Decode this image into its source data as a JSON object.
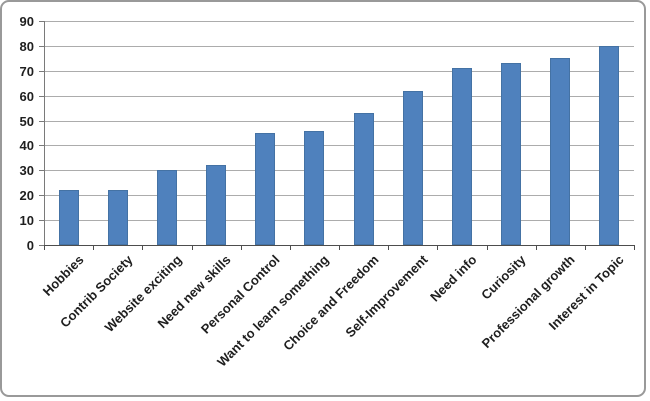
{
  "chart_data": {
    "type": "bar",
    "title": "",
    "xlabel": "",
    "ylabel": "",
    "categories": [
      "Hobbies",
      "Contrib Society",
      "Website exciting",
      "Need new skills",
      "Personal Control",
      "Want to learn something",
      "Choice and Freedom",
      "Self-Improvement",
      "Need info",
      "Curiosity",
      "Professional growth",
      "Interest in Topic"
    ],
    "values": [
      22,
      22,
      30,
      32,
      45,
      46,
      53,
      62,
      71,
      73,
      75,
      80
    ],
    "ylim": [
      0,
      90
    ],
    "ytick_step": 10,
    "ytick_labels": [
      "0",
      "10",
      "20",
      "30",
      "40",
      "50",
      "60",
      "70",
      "80",
      "90"
    ],
    "grid": true,
    "legend": false,
    "colors": {
      "bar_fill": "#4F81BD",
      "bar_border": "#4472A4",
      "gridline": "#ACACAC",
      "y_axis": "#7A7A7A",
      "x_axis": "#4D4D4D",
      "text": "#1F1F1F",
      "frame_border": "#999999",
      "background": "#FFFFFF"
    }
  }
}
